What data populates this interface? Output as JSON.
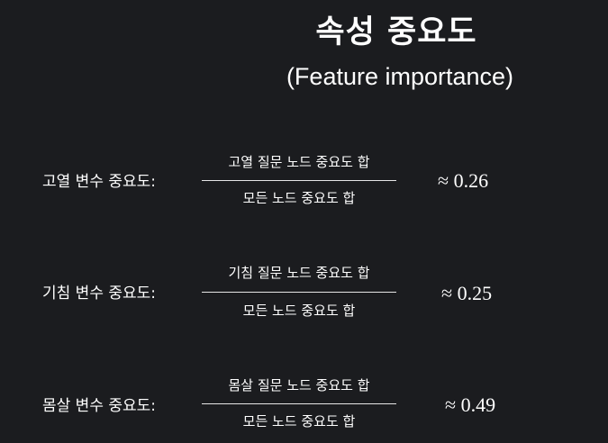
{
  "title": "속성 중요도",
  "subtitle": "(Feature importance)",
  "rows": [
    {
      "label": "고열 변수 중요도:",
      "numerator": "고열 질문 노드 중요도 합",
      "denominator": "모든 노드 중요도 합",
      "value": "≈ 0.26"
    },
    {
      "label": "기침 변수 중요도:",
      "numerator": "기침 질문 노드 중요도 합",
      "denominator": "모든 노드 중요도 합",
      "value": "≈ 0.25"
    },
    {
      "label": "몸살 변수 중요도:",
      "numerator": "몸살 질문 노드 중요도 합",
      "denominator": "모든 노드 중요도 합",
      "value": "≈ 0.49"
    }
  ]
}
